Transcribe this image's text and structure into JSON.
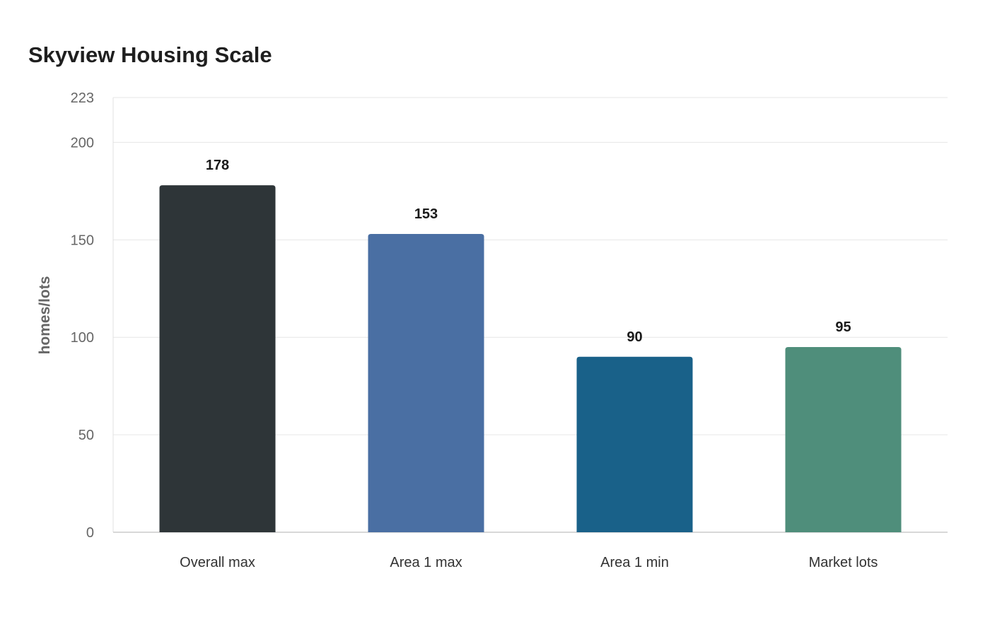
{
  "chart_data": {
    "type": "bar",
    "title": "Skyview Housing Scale",
    "xlabel": "",
    "ylabel": "homes/lots",
    "categories": [
      "Overall max",
      "Area 1 max",
      "Area 1 min",
      "Market lots"
    ],
    "values": [
      178,
      153,
      90,
      95
    ],
    "colors": [
      "#2e3538",
      "#4a6fa3",
      "#196189",
      "#4f8e7b"
    ],
    "data_labels": [
      "178",
      "153",
      "90",
      "95"
    ],
    "ylim": [
      0,
      223
    ],
    "yticks": [
      0,
      50,
      100,
      150,
      200,
      223
    ],
    "grid": true,
    "legend": "none"
  }
}
